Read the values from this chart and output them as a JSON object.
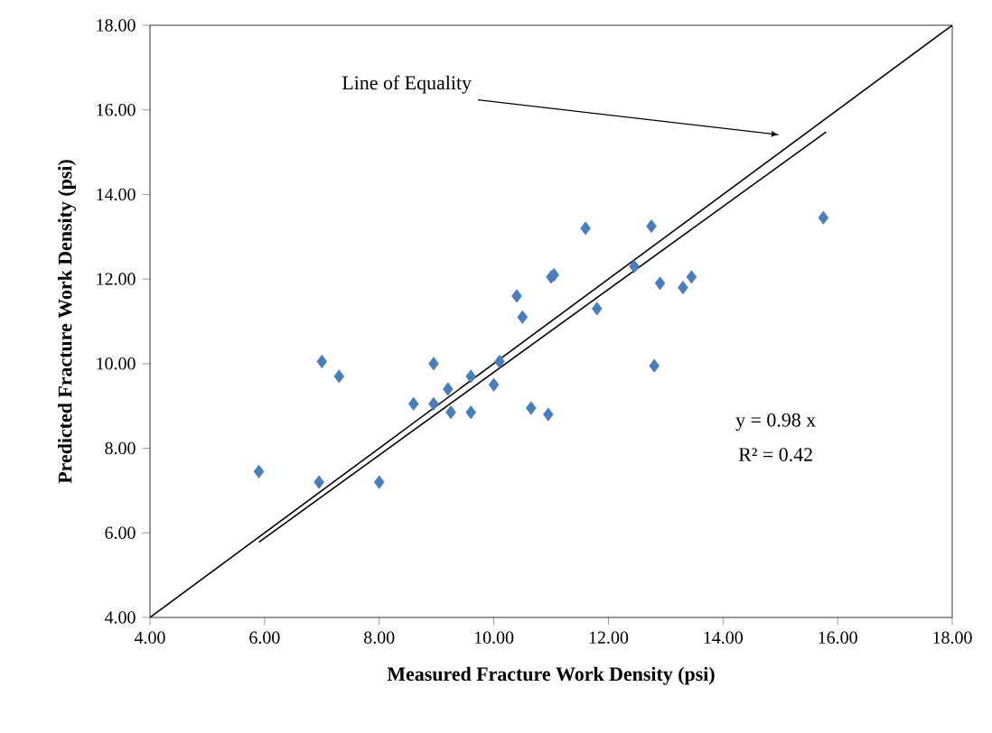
{
  "chart_data": {
    "type": "scatter",
    "xlabel": "Measured Fracture Work Density (psi)",
    "ylabel": "Predicted Fracture Work Density (psi)",
    "xlim": [
      4,
      18
    ],
    "ylim": [
      4,
      18
    ],
    "xticks": [
      {
        "value": 4,
        "label": "4.00"
      },
      {
        "value": 6,
        "label": "6.00"
      },
      {
        "value": 8,
        "label": "8.00"
      },
      {
        "value": 10,
        "label": "10.00"
      },
      {
        "value": 12,
        "label": "12.00"
      },
      {
        "value": 14,
        "label": "14.00"
      },
      {
        "value": 16,
        "label": "16.00"
      },
      {
        "value": 18,
        "label": "18.00"
      }
    ],
    "yticks": [
      {
        "value": 4,
        "label": "4.00"
      },
      {
        "value": 6,
        "label": "6.00"
      },
      {
        "value": 8,
        "label": "8.00"
      },
      {
        "value": 10,
        "label": "10.00"
      },
      {
        "value": 12,
        "label": "12.00"
      },
      {
        "value": 14,
        "label": "14.00"
      },
      {
        "value": 16,
        "label": "16.00"
      },
      {
        "value": 18,
        "label": "18.00"
      }
    ],
    "grid": false,
    "series": [
      {
        "color": "#4a7ebb",
        "marker": "diamond",
        "x": [
          5.9,
          6.95,
          7.0,
          7.3,
          8.0,
          8.6,
          8.95,
          8.95,
          9.2,
          9.25,
          9.6,
          9.6,
          10.0,
          10.1,
          10.4,
          10.5,
          10.65,
          10.95,
          11.0,
          11.05,
          11.6,
          11.8,
          12.45,
          12.75,
          12.8,
          12.9,
          13.3,
          13.45,
          15.75
        ],
        "values": [
          7.45,
          7.2,
          10.05,
          9.7,
          7.2,
          9.05,
          10.0,
          9.05,
          9.4,
          8.85,
          9.7,
          8.85,
          9.5,
          10.05,
          11.6,
          11.1,
          8.95,
          8.8,
          12.05,
          12.1,
          13.2,
          11.3,
          12.3,
          13.25,
          9.95,
          11.9,
          11.8,
          12.05,
          13.45
        ]
      },
      {
        "type": "line",
        "color": "#000000",
        "marker": "none",
        "x": [
          4,
          18
        ],
        "values": [
          4,
          18
        ]
      },
      {
        "type": "line",
        "color": "#000000",
        "marker": "none",
        "x": [
          5.9,
          15.8
        ],
        "values": [
          5.78,
          15.48
        ]
      }
    ],
    "annotations": [
      "Line of Equality",
      "y = 0.98 x",
      "R² = 0.42"
    ]
  }
}
